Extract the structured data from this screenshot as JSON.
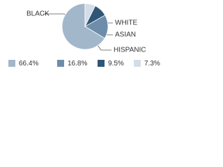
{
  "chart_data": {
    "type": "pie",
    "categories": [
      "BLACK",
      "HISPANIC",
      "ASIAN",
      "WHITE"
    ],
    "values": [
      66.4,
      16.8,
      9.5,
      7.3
    ],
    "value_labels": [
      "66.4%",
      "16.8%",
      "9.5%",
      "7.3%"
    ],
    "colors": [
      "#a3b7cb",
      "#6e8dab",
      "#2f5677",
      "#d4dde7"
    ]
  }
}
